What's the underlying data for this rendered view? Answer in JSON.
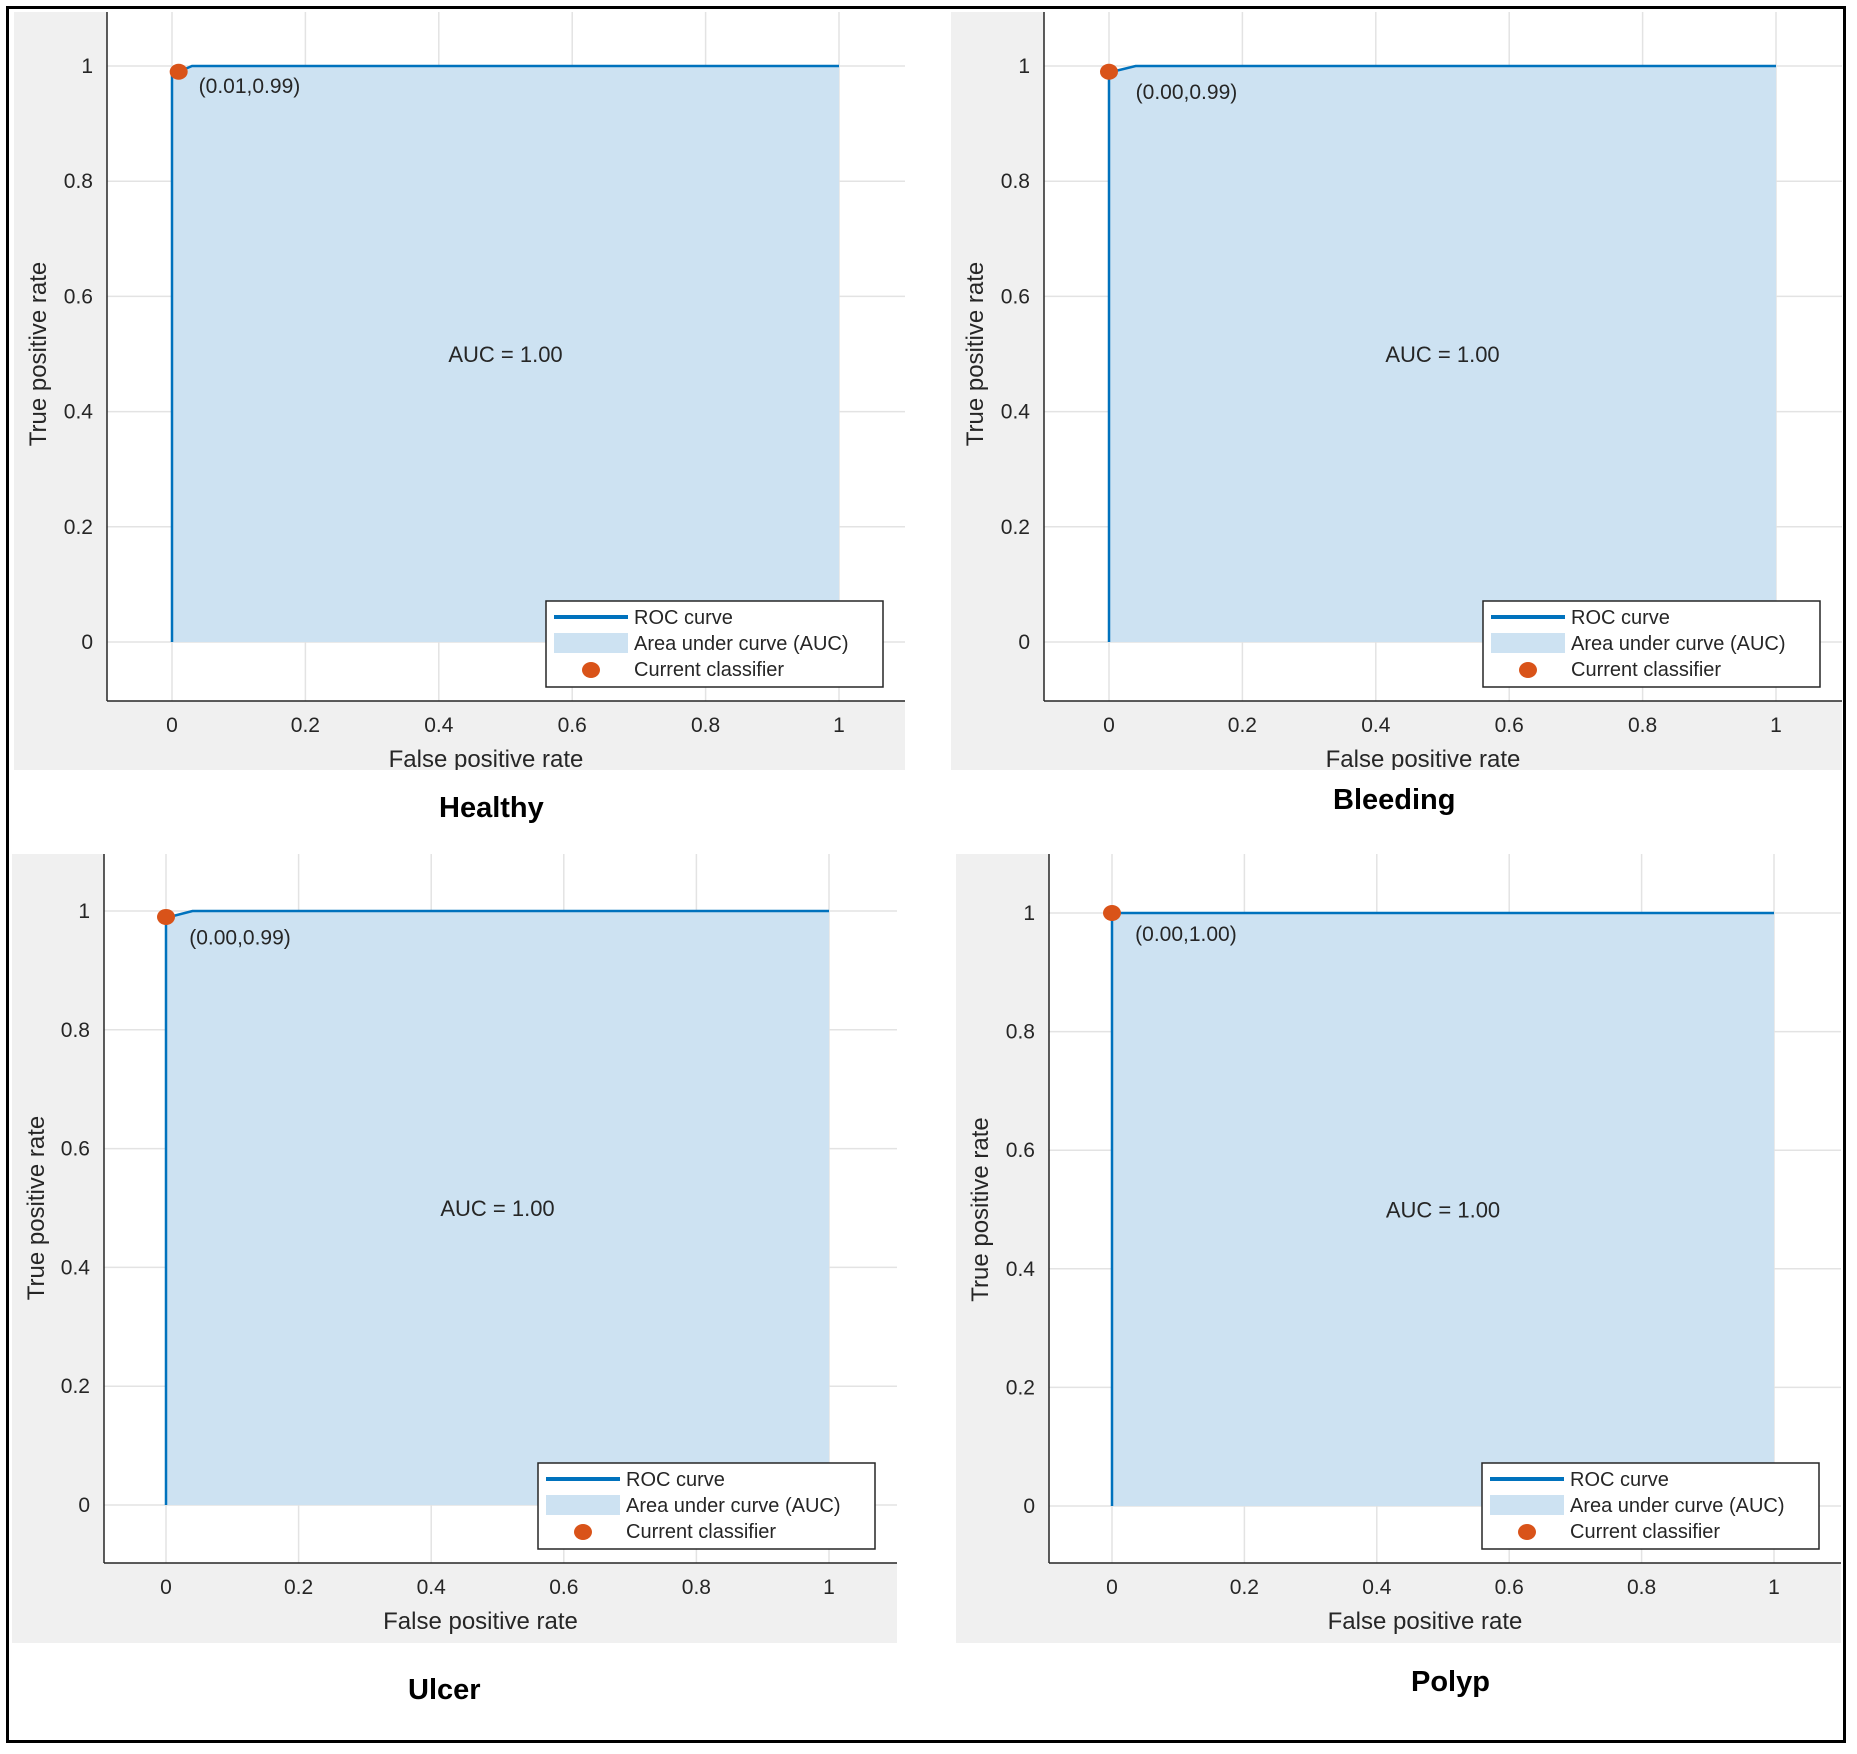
{
  "figure": {
    "panel_names": [
      "Healthy",
      "Bleeding",
      "Ulcer",
      "Polyp"
    ]
  },
  "chart_data": [
    {
      "type": "line",
      "panel_label": "Healthy",
      "xlabel": "False positive rate",
      "ylabel": "True positive rate",
      "xlim": [
        -0.1,
        1.1
      ],
      "ylim": [
        -0.1,
        1.1
      ],
      "xticks": [
        0,
        0.2,
        0.4,
        0.6,
        0.8,
        1
      ],
      "yticks": [
        0,
        0.2,
        0.4,
        0.6,
        0.8,
        1
      ],
      "tick_labels": [
        "0",
        "0.2",
        "0.4",
        "0.6",
        "0.8",
        "1"
      ],
      "grid": true,
      "series": [
        {
          "name": "ROC curve",
          "x": [
            0,
            0,
            0.01,
            0.03,
            1
          ],
          "y": [
            0,
            0.99,
            0.99,
            1.0,
            1.0
          ],
          "color": "#0072bd"
        },
        {
          "name": "Area under curve (AUC)",
          "type": "area",
          "color": "#cde2f2"
        },
        {
          "name": "Current classifier",
          "type": "scatter",
          "x": [
            0.01
          ],
          "y": [
            0.99
          ],
          "color": "#d95319"
        }
      ],
      "annotations": [
        {
          "text": "(0.01,0.99)",
          "x": 0.04,
          "y": 0.965
        },
        {
          "text": "AUC = 1.00",
          "x": 0.5,
          "y": 0.5
        }
      ],
      "legend": {
        "position": "bottom-right",
        "entries": [
          "ROC curve",
          "Area under curve (AUC)",
          "Current classifier"
        ]
      }
    },
    {
      "type": "line",
      "panel_label": "Bleeding",
      "xlabel": "False positive rate",
      "ylabel": "True positive rate",
      "xlim": [
        -0.1,
        1.1
      ],
      "ylim": [
        -0.1,
        1.1
      ],
      "xticks": [
        0,
        0.2,
        0.4,
        0.6,
        0.8,
        1
      ],
      "yticks": [
        0,
        0.2,
        0.4,
        0.6,
        0.8,
        1
      ],
      "tick_labels": [
        "0",
        "0.2",
        "0.4",
        "0.6",
        "0.8",
        "1"
      ],
      "grid": true,
      "series": [
        {
          "name": "ROC curve",
          "x": [
            0,
            0,
            0.005,
            0.04,
            1
          ],
          "y": [
            0,
            0.99,
            0.99,
            1.0,
            1.0
          ],
          "color": "#0072bd"
        },
        {
          "name": "Area under curve (AUC)",
          "type": "area",
          "color": "#cde2f2"
        },
        {
          "name": "Current classifier",
          "type": "scatter",
          "x": [
            0.0
          ],
          "y": [
            0.99
          ],
          "color": "#d95319"
        }
      ],
      "annotations": [
        {
          "text": "(0.00,0.99)",
          "x": 0.04,
          "y": 0.955
        },
        {
          "text": "AUC = 1.00",
          "x": 0.5,
          "y": 0.5
        }
      ],
      "legend": {
        "position": "bottom-right",
        "entries": [
          "ROC curve",
          "Area under curve (AUC)",
          "Current classifier"
        ]
      }
    },
    {
      "type": "line",
      "panel_label": "Ulcer",
      "xlabel": "False positive rate",
      "ylabel": "True positive rate",
      "xlim": [
        -0.1,
        1.1
      ],
      "ylim": [
        -0.1,
        1.1
      ],
      "xticks": [
        0,
        0.2,
        0.4,
        0.6,
        0.8,
        1
      ],
      "yticks": [
        0,
        0.2,
        0.4,
        0.6,
        0.8,
        1
      ],
      "tick_labels": [
        "0",
        "0.2",
        "0.4",
        "0.6",
        "0.8",
        "1"
      ],
      "grid": true,
      "series": [
        {
          "name": "ROC curve",
          "x": [
            0,
            0,
            0.005,
            0.04,
            1
          ],
          "y": [
            0,
            0.99,
            0.99,
            1.0,
            1.0
          ],
          "color": "#0072bd"
        },
        {
          "name": "Area under curve (AUC)",
          "type": "area",
          "color": "#cde2f2"
        },
        {
          "name": "Current classifier",
          "type": "scatter",
          "x": [
            0.0
          ],
          "y": [
            0.99
          ],
          "color": "#d95319"
        }
      ],
      "annotations": [
        {
          "text": "(0.00,0.99)",
          "x": 0.035,
          "y": 0.955
        },
        {
          "text": "AUC = 1.00",
          "x": 0.5,
          "y": 0.5
        }
      ],
      "legend": {
        "position": "bottom-right",
        "entries": [
          "ROC curve",
          "Area under curve (AUC)",
          "Current classifier"
        ]
      }
    },
    {
      "type": "line",
      "panel_label": "Polyp",
      "xlabel": "False positive rate",
      "ylabel": "True positive rate",
      "xlim": [
        -0.1,
        1.1
      ],
      "ylim": [
        -0.1,
        1.1
      ],
      "xticks": [
        0,
        0.2,
        0.4,
        0.6,
        0.8,
        1
      ],
      "yticks": [
        0,
        0.2,
        0.4,
        0.6,
        0.8,
        1
      ],
      "tick_labels": [
        "0",
        "0.2",
        "0.4",
        "0.6",
        "0.8",
        "1"
      ],
      "grid": true,
      "series": [
        {
          "name": "ROC curve",
          "x": [
            0,
            0,
            1
          ],
          "y": [
            0,
            1.0,
            1.0
          ],
          "color": "#0072bd"
        },
        {
          "name": "Area under curve (AUC)",
          "type": "area",
          "color": "#cde2f2"
        },
        {
          "name": "Current classifier",
          "type": "scatter",
          "x": [
            0.0
          ],
          "y": [
            1.0
          ],
          "color": "#d95319"
        }
      ],
      "annotations": [
        {
          "text": "(0.00,1.00)",
          "x": 0.035,
          "y": 0.965
        },
        {
          "text": "AUC = 1.00",
          "x": 0.5,
          "y": 0.5
        }
      ],
      "legend": {
        "position": "bottom-right",
        "entries": [
          "ROC curve",
          "Area under curve (AUC)",
          "Current classifier"
        ]
      }
    }
  ]
}
